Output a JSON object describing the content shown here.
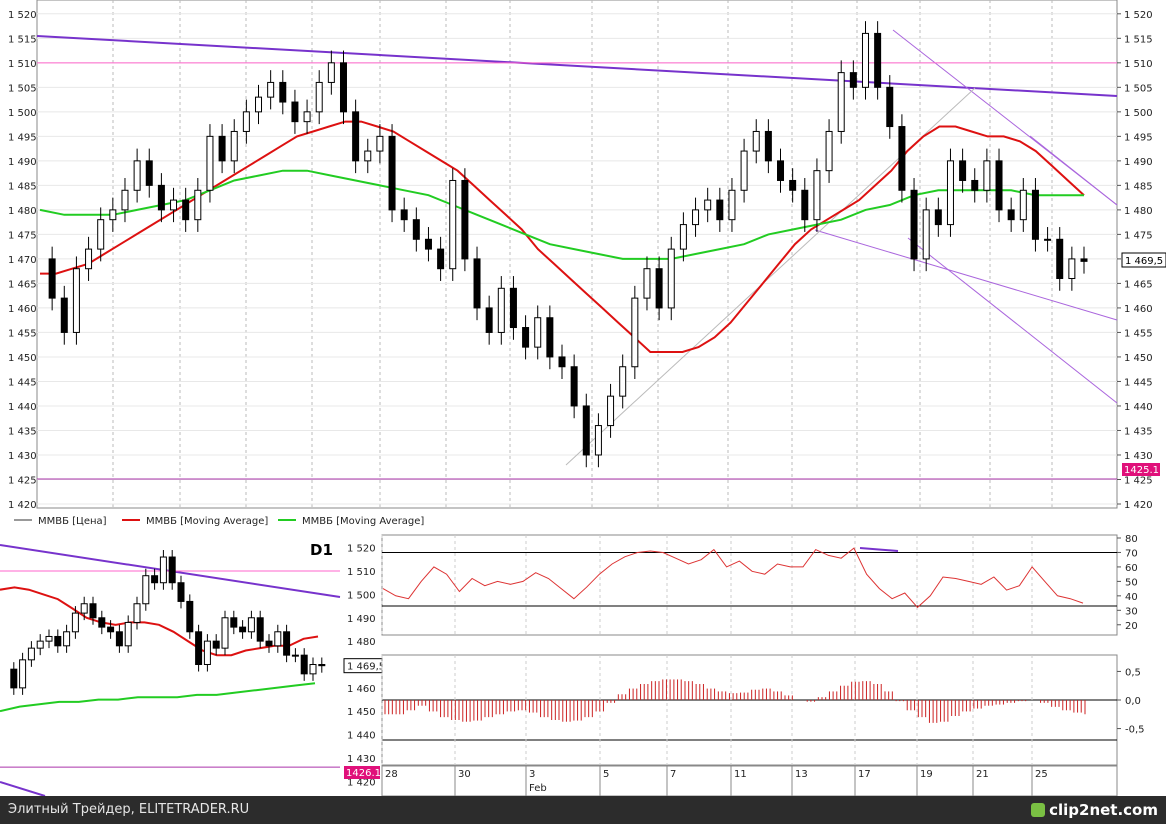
{
  "main_chart": {
    "y_ticks": [
      "1 520",
      "1 515",
      "1 510",
      "1 505",
      "1 500",
      "1 495",
      "1 490",
      "1 485",
      "1 480",
      "1 475",
      "1 470",
      "1 465",
      "1 460",
      "1 455",
      "1 450",
      "1 445",
      "1 440",
      "1 435",
      "1 430",
      "1 425",
      "1 420"
    ],
    "current_price_label": "1 469,5",
    "support_label": "1425.1",
    "legend": [
      {
        "label": "ММВБ [Цена]",
        "color": "#333333"
      },
      {
        "label": "ММВБ [Moving Average]",
        "color": "#dd1111"
      },
      {
        "label": "ММВБ [Moving Average]",
        "color": "#22cc22"
      }
    ]
  },
  "mini_chart": {
    "timeframe": "D1",
    "y_ticks": [
      "1 520",
      "1 510",
      "1 500",
      "1 490",
      "1 480",
      "1 469,5",
      "1 460",
      "1 450",
      "1 440",
      "1 430",
      "1 420"
    ],
    "current_label": "1 469,5",
    "support_label": "1426.1"
  },
  "rsi_panel": {
    "y_ticks": [
      "80",
      "70",
      "60",
      "50",
      "40",
      "30",
      "20"
    ]
  },
  "osc_panel": {
    "y_ticks": [
      "0,5",
      "0,0",
      "-0,5"
    ]
  },
  "x_axis": {
    "labels": [
      "28",
      "30",
      "3",
      "5",
      "7",
      "11",
      "13",
      "17",
      "19",
      "21",
      "25"
    ],
    "month_label": "Feb"
  },
  "footer": {
    "left_text": "Элитный Трейдер, ELITETRADER.RU",
    "logo_text": "clip2net.com"
  },
  "chart_data": [
    {
      "type": "line",
      "ylim": [
        1420,
        1522
      ],
      "series": [
        {
          "name": "ММВБ [Цена]",
          "values": [
            1470,
            1462,
            1455,
            1468,
            1472,
            1478,
            1480,
            1484,
            1490,
            1485,
            1480,
            1482,
            1478,
            1484,
            1495,
            1490,
            1496,
            1500,
            1503,
            1506,
            1502,
            1498,
            1500,
            1506,
            1510,
            1500,
            1490,
            1492,
            1495,
            1480,
            1478,
            1474,
            1472,
            1468,
            1486,
            1470,
            1460,
            1455,
            1464,
            1456,
            1452,
            1458,
            1450,
            1448,
            1440,
            1430,
            1436,
            1442,
            1448,
            1462,
            1468,
            1460,
            1472,
            1477,
            1480,
            1482,
            1478,
            1484,
            1492,
            1496,
            1490,
            1486,
            1484,
            1478,
            1488,
            1496,
            1508,
            1505,
            1516,
            1505,
            1497,
            1484,
            1470,
            1480,
            1477,
            1490,
            1486,
            1484,
            1490,
            1480,
            1478,
            1484,
            1474,
            1474,
            1466,
            1470,
            1469.5
          ]
        },
        {
          "name": "ММВБ [Moving Average]",
          "values": [
            1467,
            1467,
            1468,
            1469,
            1471,
            1473,
            1475,
            1477,
            1479,
            1481,
            1483,
            1485,
            1487,
            1489,
            1491,
            1493,
            1495,
            1496,
            1497,
            1498,
            1498,
            1497,
            1496,
            1494,
            1492,
            1490,
            1488,
            1485,
            1482,
            1479,
            1476,
            1472,
            1469,
            1466,
            1463,
            1460,
            1457,
            1454,
            1451,
            1451,
            1451,
            1452,
            1454,
            1457,
            1461,
            1465,
            1469,
            1473,
            1476,
            1478,
            1480,
            1482,
            1485,
            1488,
            1492,
            1495,
            1497,
            1497,
            1496,
            1495,
            1495,
            1494,
            1492,
            1489,
            1486,
            1483
          ]
        },
        {
          "name": "ММВБ [Moving Average]",
          "values": [
            1480,
            1479,
            1479,
            1479,
            1480,
            1481,
            1482,
            1484,
            1486,
            1487,
            1488,
            1488,
            1487,
            1486,
            1485,
            1484,
            1483,
            1481,
            1479,
            1477,
            1475,
            1473,
            1472,
            1471,
            1470,
            1470,
            1470,
            1471,
            1472,
            1473,
            1475,
            1476,
            1477,
            1478,
            1480,
            1481,
            1483,
            1484,
            1484,
            1484,
            1484,
            1483,
            1483,
            1483
          ]
        }
      ],
      "horizontal_levels": [
        1510,
        1425.1
      ],
      "current_value": 1469.5
    },
    {
      "type": "line",
      "ylim": [
        15,
        80
      ],
      "levels": [
        70,
        33
      ],
      "series": [
        {
          "name": "",
          "values": [
            45,
            40,
            38,
            50,
            60,
            55,
            43,
            52,
            47,
            50,
            48,
            50,
            56,
            52,
            45,
            38,
            46,
            55,
            62,
            67,
            70,
            71,
            70,
            66,
            62,
            65,
            72,
            60,
            64,
            57,
            55,
            62,
            60,
            60,
            72,
            68,
            66,
            73,
            55,
            45,
            38,
            42,
            32,
            40,
            53,
            52,
            50,
            48,
            53,
            44,
            47,
            60,
            50,
            40,
            38,
            35
          ]
        }
      ]
    },
    {
      "type": "bar",
      "ylim": [
        -0.7,
        0.7
      ],
      "series": [
        {
          "name": "",
          "values": [
            -0.25,
            -0.25,
            -0.18,
            -0.1,
            -0.2,
            -0.3,
            -0.35,
            -0.38,
            -0.36,
            -0.3,
            -0.25,
            -0.2,
            -0.18,
            -0.22,
            -0.3,
            -0.35,
            -0.38,
            -0.36,
            -0.3,
            -0.2,
            -0.05,
            0.1,
            0.2,
            0.28,
            0.33,
            0.36,
            0.36,
            0.33,
            0.28,
            0.2,
            0.15,
            0.12,
            0.13,
            0.18,
            0.2,
            0.15,
            0.08,
            0.0,
            -0.03,
            0.05,
            0.15,
            0.25,
            0.32,
            0.33,
            0.28,
            0.15,
            -0.02,
            -0.18,
            -0.3,
            -0.4,
            -0.38,
            -0.28,
            -0.2,
            -0.15,
            -0.1,
            -0.08,
            -0.05,
            -0.02,
            0.0,
            -0.05,
            -0.12,
            -0.18,
            -0.22,
            -0.25
          ]
        }
      ]
    }
  ]
}
